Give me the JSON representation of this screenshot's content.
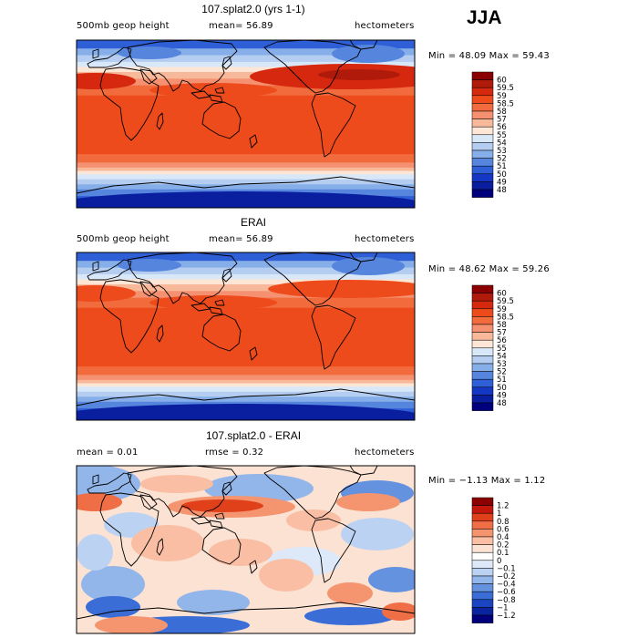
{
  "season": "JJA",
  "panels": [
    {
      "title": "107.splat2.0 (yrs 1-1)",
      "variable": "500mb geop height",
      "stat1": "mean=  56.89",
      "stat2": "",
      "units": "hectometers",
      "minmax": "Min =  48.09 Max =  59.43",
      "legend": [
        "60",
        "59.5",
        "59",
        "58.5",
        "58",
        "57",
        "56",
        "55",
        "54",
        "53",
        "52",
        "51",
        "50",
        "49",
        "48"
      ]
    },
    {
      "title": "ERAI",
      "variable": "500mb geop height",
      "stat1": "mean=  56.89",
      "stat2": "",
      "units": "hectometers",
      "minmax": "Min =  48.62 Max =  59.26",
      "legend": [
        "60",
        "59.5",
        "59",
        "58.5",
        "58",
        "57",
        "56",
        "55",
        "54",
        "53",
        "52",
        "51",
        "50",
        "49",
        "48"
      ]
    },
    {
      "title": "107.splat2.0 - ERAI",
      "variable": "",
      "stat1": "mean =   0.01",
      "stat2": "rmse =   0.32",
      "units": "hectometers",
      "minmax": "Min = −1.13 Max =   1.12",
      "legend": [
        "1.2",
        "1",
        "0.8",
        "0.6",
        "0.4",
        "0.2",
        "0.1",
        "0",
        "−0.1",
        "−0.2",
        "−0.4",
        "−0.6",
        "−0.8",
        "−1",
        "−1.2"
      ]
    }
  ],
  "colors": {
    "abs": [
      "#8b0000",
      "#b01a0a",
      "#d6280f",
      "#ee4b1c",
      "#f26b3c",
      "#f59170",
      "#f8b89a",
      "#fde6d6",
      "#d9e8f8",
      "#b4cdf0",
      "#86aee8",
      "#5685de",
      "#2f5fd6",
      "#1437c4",
      "#0a1fa0",
      "#00007d"
    ],
    "diff": [
      "#8b0000",
      "#c3170b",
      "#e0401a",
      "#f06e45",
      "#f59570",
      "#f9bea3",
      "#fce2d3",
      "#ffffff",
      "#dde9f8",
      "#bcd2f2",
      "#92b5ea",
      "#6492df",
      "#3a6dd5",
      "#1a44c0",
      "#0a24a0",
      "#00007d"
    ]
  }
}
